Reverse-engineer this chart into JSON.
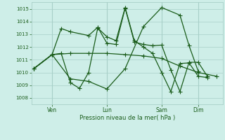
{
  "xlabel": "Pression niveau de la mer( hPa )",
  "background_color": "#ceeee8",
  "grid_color": "#a8cfc8",
  "line_color": "#1a5c1a",
  "ylim": [
    1007.5,
    1015.5
  ],
  "yticks": [
    1008,
    1009,
    1010,
    1011,
    1012,
    1013,
    1014,
    1015
  ],
  "xlim": [
    0,
    240
  ],
  "x_tick_positions": [
    24,
    96,
    168,
    216
  ],
  "x_tick_labels": [
    "Ven",
    "Lun",
    "Sam",
    "Dim"
  ],
  "series": [
    {
      "x": [
        0,
        24,
        48,
        72,
        96,
        120,
        144,
        168,
        192,
        216,
        240
      ],
      "y": [
        1010.3,
        1011.4,
        1011.5,
        1011.5,
        1011.5,
        1011.4,
        1011.3,
        1011.1,
        1010.5,
        1010.0,
        1009.7
      ]
    },
    {
      "x": [
        0,
        24,
        48,
        72,
        96,
        120,
        144,
        168,
        192,
        204,
        216
      ],
      "y": [
        1010.3,
        1011.4,
        1009.5,
        1009.3,
        1008.7,
        1010.3,
        1013.6,
        1015.1,
        1014.5,
        1012.1,
        1010.1
      ]
    },
    {
      "x": [
        0,
        24,
        36,
        48,
        72,
        84,
        96,
        108,
        120,
        132,
        144,
        156,
        168,
        180,
        192,
        204,
        216,
        228
      ],
      "y": [
        1010.3,
        1011.4,
        1013.45,
        1013.2,
        1012.9,
        1013.55,
        1012.3,
        1012.2,
        1015.05,
        1012.4,
        1012.2,
        1012.1,
        1012.15,
        1010.2,
        1008.5,
        1010.8,
        1010.8,
        1009.7
      ]
    },
    {
      "x": [
        0,
        24,
        36,
        48,
        60,
        72,
        84,
        96,
        108,
        120,
        132,
        144,
        156,
        168,
        180,
        192,
        204,
        216,
        228
      ],
      "y": [
        1010.3,
        1011.4,
        1011.5,
        1009.2,
        1008.75,
        1010.0,
        1013.5,
        1012.8,
        1012.5,
        1015.1,
        1012.5,
        1012.0,
        1011.5,
        1010.0,
        1008.5,
        1010.7,
        1010.75,
        1009.7,
        1009.6
      ]
    }
  ]
}
